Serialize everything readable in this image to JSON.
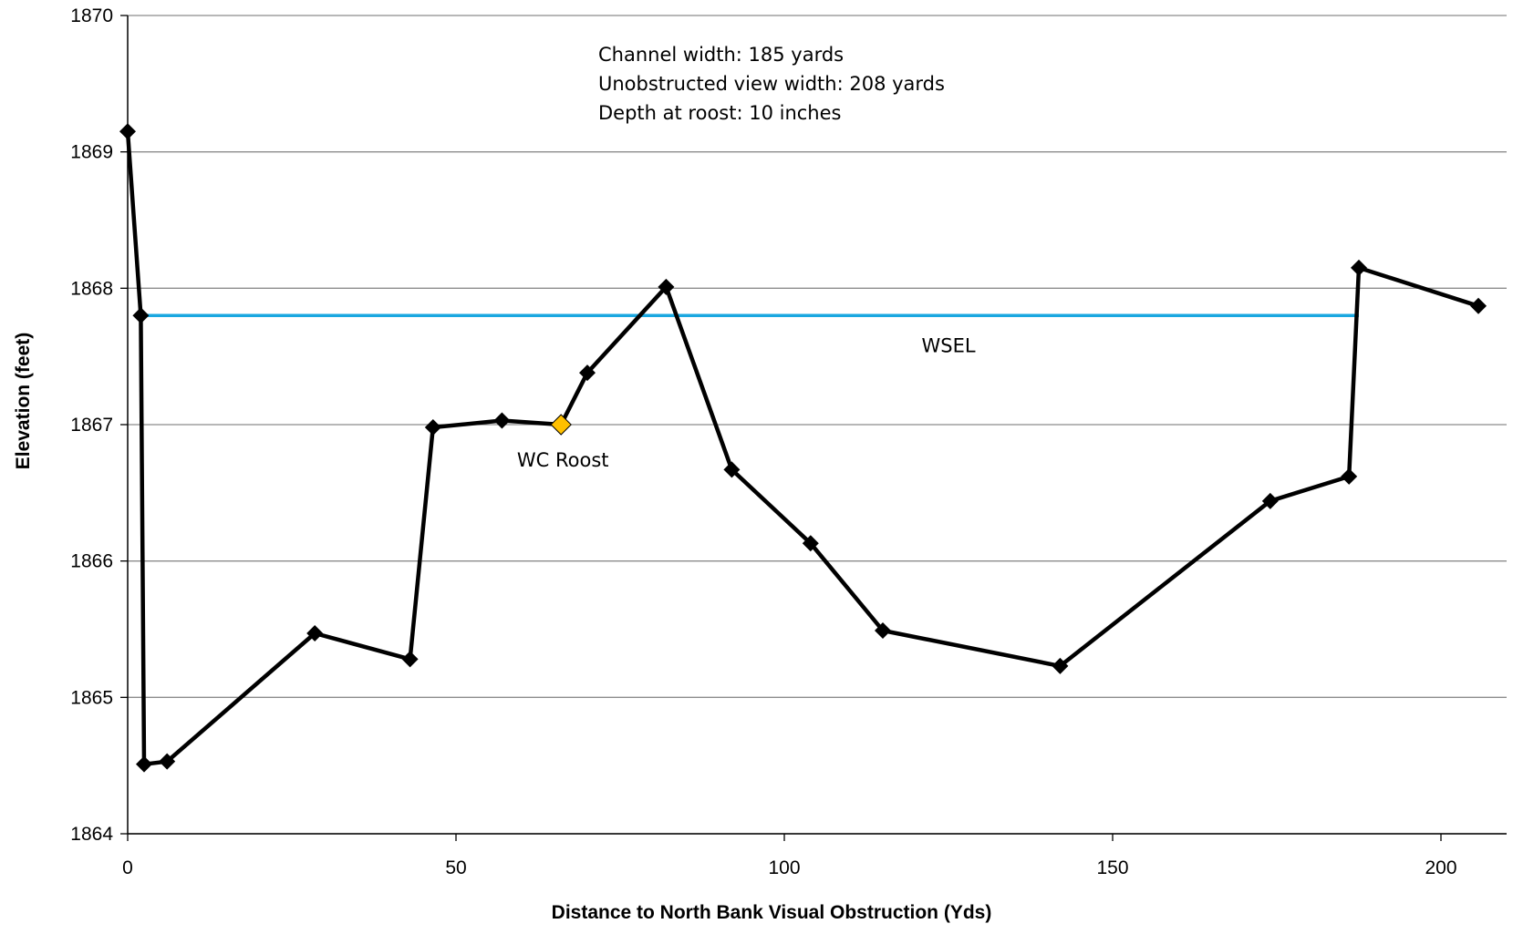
{
  "chart_data": {
    "type": "line",
    "title": "",
    "xlabel": "Distance to North Bank Visual Obstruction (Yds)",
    "ylabel": "Elevation (feet)",
    "xlim": [
      0,
      210
    ],
    "ylim": [
      1864,
      1870
    ],
    "x_ticks": [
      0,
      50,
      100,
      150,
      200
    ],
    "y_ticks": [
      1864,
      1865,
      1866,
      1867,
      1868,
      1869,
      1870
    ],
    "grid": "horizontal",
    "series": [
      {
        "name": "",
        "color": "#000000",
        "marker": "diamond",
        "x": [
          0,
          2,
          2.5,
          6,
          28.5,
          43,
          46.5,
          57,
          66,
          70,
          82,
          92,
          104,
          115,
          142,
          174,
          186,
          187.5,
          205.7
        ],
        "y": [
          1869.15,
          1867.8,
          1864.51,
          1864.53,
          1865.47,
          1865.28,
          1866.98,
          1867.03,
          1867.0,
          1867.38,
          1868.01,
          1866.67,
          1866.13,
          1865.49,
          1865.23,
          1866.44,
          1866.62,
          1868.15,
          1867.87
        ]
      }
    ],
    "highlight_point": {
      "label": "WC Roost",
      "x": 66,
      "y": 1867.0,
      "color": "#FFC000"
    },
    "reference_line": {
      "label": "WSEL",
      "y": 1867.8,
      "x_start": 2,
      "x_end": 187.5,
      "color": "#1AA7E0"
    },
    "annotations": [
      "Channel width: 185 yards",
      "Unobstructed view width: 208 yards",
      "Depth at roost: 10 inches"
    ]
  }
}
